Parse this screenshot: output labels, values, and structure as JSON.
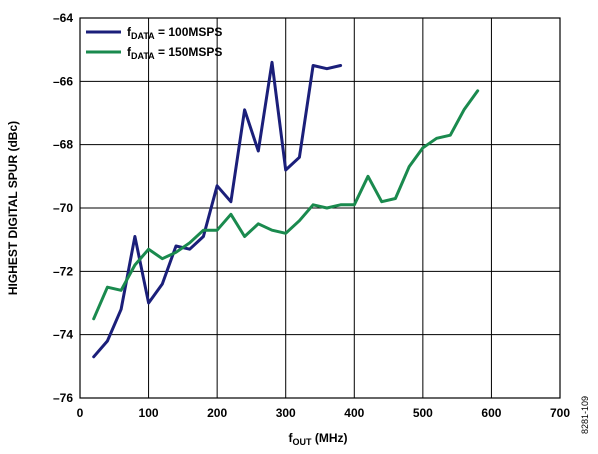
{
  "chart_data": {
    "type": "line",
    "xlabel_main": "f",
    "xlabel_sub": "OUT",
    "xlabel_unit": " (MHz)",
    "ylabel": "HIGHEST DIGITAL SPUR (dBc)",
    "xlim": [
      0,
      700
    ],
    "ylim": [
      -76,
      -64
    ],
    "xticks": [
      0,
      100,
      200,
      300,
      400,
      500,
      600,
      700
    ],
    "yticks": [
      -64,
      -66,
      -68,
      -70,
      -72,
      -74,
      -76
    ],
    "xtick_labels": [
      "0",
      "100",
      "200",
      "300",
      "400",
      "500",
      "600",
      "700"
    ],
    "ytick_labels": [
      "–64",
      "–66",
      "–68",
      "–70",
      "–72",
      "–74",
      "–76"
    ],
    "grid": true,
    "legend_position": "top-left",
    "figure_id": "8281-109",
    "series": [
      {
        "label_main": "f",
        "label_sub": "DATA",
        "label_rest": " = 100MSPS",
        "color": "#1b1f7a",
        "x": [
          20,
          40,
          60,
          80,
          100,
          120,
          140,
          160,
          180,
          200,
          220,
          240,
          260,
          280,
          300,
          320,
          340,
          360,
          380
        ],
        "y": [
          -74.7,
          -74.2,
          -73.2,
          -70.9,
          -73.0,
          -72.4,
          -71.2,
          -71.3,
          -70.9,
          -69.3,
          -69.8,
          -66.9,
          -68.2,
          -65.4,
          -68.8,
          -68.4,
          -65.5,
          -65.6,
          -65.5
        ]
      },
      {
        "label_main": "f",
        "label_sub": "DATA",
        "label_rest": " = 150MSPS",
        "color": "#1a8a4e",
        "x": [
          20,
          40,
          60,
          80,
          100,
          120,
          140,
          160,
          180,
          200,
          220,
          240,
          260,
          280,
          300,
          320,
          340,
          360,
          380,
          400,
          420,
          440,
          460,
          480,
          500,
          520,
          540,
          560,
          580
        ],
        "y": [
          -73.5,
          -72.5,
          -72.6,
          -71.8,
          -71.3,
          -71.6,
          -71.4,
          -71.1,
          -70.7,
          -70.7,
          -70.2,
          -70.9,
          -70.5,
          -70.7,
          -70.8,
          -70.4,
          -69.9,
          -70.0,
          -69.9,
          -69.9,
          -69.0,
          -69.8,
          -69.7,
          -68.7,
          -68.1,
          -67.8,
          -67.7,
          -66.9,
          -66.3
        ]
      }
    ]
  }
}
